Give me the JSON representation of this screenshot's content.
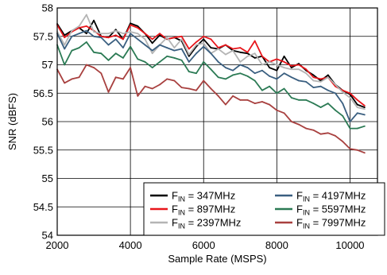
{
  "chart_data": {
    "type": "line",
    "xlabel": "Sample Rate (MSPS)",
    "ylabel": "SNR (dBFS)",
    "xlim": [
      2000,
      10750
    ],
    "ylim": [
      54,
      58
    ],
    "xticks": [
      "2000",
      "4000",
      "6000",
      "8000",
      "10000"
    ],
    "yticks": [
      "54",
      "54.5",
      "55",
      "55.5",
      "56",
      "56.5",
      "57",
      "57.5",
      "58"
    ],
    "grid": true,
    "legend_position": "bottom-right",
    "x": [
      2000,
      2200,
      2400,
      2600,
      2800,
      3000,
      3200,
      3400,
      3600,
      3800,
      4000,
      4200,
      4400,
      4600,
      4800,
      5000,
      5200,
      5400,
      5600,
      5800,
      6000,
      6200,
      6400,
      6600,
      6800,
      7000,
      7200,
      7400,
      7600,
      7800,
      8000,
      8200,
      8400,
      8600,
      8800,
      9000,
      9200,
      9400,
      9600,
      9800,
      10000,
      10200,
      10400
    ],
    "series": [
      {
        "name": "347MHz",
        "color": "#000000",
        "values": [
          57.72,
          57.52,
          57.6,
          57.65,
          57.55,
          57.78,
          57.5,
          57.48,
          57.62,
          57.45,
          57.73,
          57.68,
          57.55,
          57.38,
          57.52,
          57.45,
          57.48,
          57.42,
          57.15,
          57.32,
          57.45,
          57.3,
          57.28,
          57.35,
          57.25,
          57.22,
          57.2,
          57.12,
          57.15,
          56.95,
          56.9,
          57.15,
          56.95,
          57.02,
          56.9,
          56.82,
          56.72,
          56.82,
          56.65,
          56.55,
          56.48,
          56.3,
          56.25
        ]
      },
      {
        "name": "897MHz",
        "color": "#e8161b",
        "values": [
          57.7,
          57.48,
          57.58,
          57.65,
          57.68,
          57.6,
          57.5,
          57.48,
          57.52,
          57.45,
          57.7,
          57.65,
          57.55,
          57.45,
          57.55,
          57.45,
          57.48,
          57.5,
          57.28,
          57.4,
          57.5,
          57.45,
          57.3,
          57.35,
          57.28,
          57.3,
          57.22,
          57.42,
          57.15,
          57.05,
          57.1,
          57.05,
          56.98,
          57.0,
          56.92,
          56.78,
          56.75,
          56.78,
          56.62,
          56.55,
          56.5,
          56.38,
          56.28
        ]
      },
      {
        "name": "2397MHz",
        "color": "#b4b4b4",
        "values": [
          57.58,
          57.35,
          57.6,
          57.68,
          57.88,
          57.58,
          57.55,
          57.55,
          57.6,
          57.55,
          57.58,
          57.55,
          57.45,
          57.2,
          57.35,
          57.48,
          57.3,
          57.45,
          57.18,
          57.35,
          57.38,
          57.2,
          57.28,
          57.18,
          57.25,
          57.05,
          57.15,
          57.2,
          57.0,
          57.05,
          57.0,
          56.95,
          56.92,
          56.92,
          56.85,
          56.72,
          56.7,
          56.78,
          56.65,
          56.52,
          56.42,
          56.25,
          56.22
        ]
      },
      {
        "name": "4197MHz",
        "color": "#3a5f80",
        "values": [
          57.55,
          57.28,
          57.5,
          57.55,
          57.6,
          57.5,
          57.48,
          57.35,
          57.45,
          57.3,
          57.55,
          57.45,
          57.35,
          57.25,
          57.35,
          57.3,
          57.25,
          57.28,
          57.05,
          57.2,
          57.32,
          57.2,
          57.05,
          56.95,
          56.9,
          57.0,
          56.95,
          56.85,
          56.9,
          56.8,
          56.75,
          56.85,
          56.78,
          56.72,
          56.7,
          56.6,
          56.62,
          56.55,
          56.5,
          56.32,
          56.0,
          56.15,
          56.12
        ]
      },
      {
        "name": "5597MHz",
        "color": "#2b7a54",
        "values": [
          57.35,
          57.0,
          57.25,
          57.3,
          57.4,
          57.22,
          57.2,
          57.08,
          57.2,
          57.12,
          57.32,
          57.1,
          57.05,
          56.95,
          57.05,
          57.15,
          57.12,
          57.08,
          56.88,
          56.85,
          57.05,
          56.92,
          56.78,
          56.75,
          56.82,
          56.85,
          56.8,
          56.72,
          56.55,
          56.62,
          56.5,
          56.58,
          56.42,
          56.38,
          56.38,
          56.32,
          56.25,
          56.32,
          56.2,
          56.1,
          55.88,
          55.88,
          55.92
        ]
      },
      {
        "name": "7997MHz",
        "color": "#a8403f",
        "values": [
          56.92,
          56.68,
          56.75,
          56.78,
          57.0,
          56.95,
          56.85,
          56.52,
          56.78,
          56.75,
          56.95,
          56.45,
          56.62,
          56.58,
          56.65,
          56.75,
          56.72,
          56.6,
          56.58,
          56.55,
          56.72,
          56.58,
          56.45,
          56.3,
          56.45,
          56.38,
          56.38,
          56.32,
          56.35,
          56.3,
          56.2,
          56.15,
          56.0,
          55.95,
          55.88,
          55.85,
          55.78,
          55.8,
          55.75,
          55.65,
          55.52,
          55.5,
          55.45
        ]
      }
    ],
    "legend": {
      "prefix_main": "F",
      "prefix_sub": "IN",
      "prefix_rest": " = "
    }
  }
}
